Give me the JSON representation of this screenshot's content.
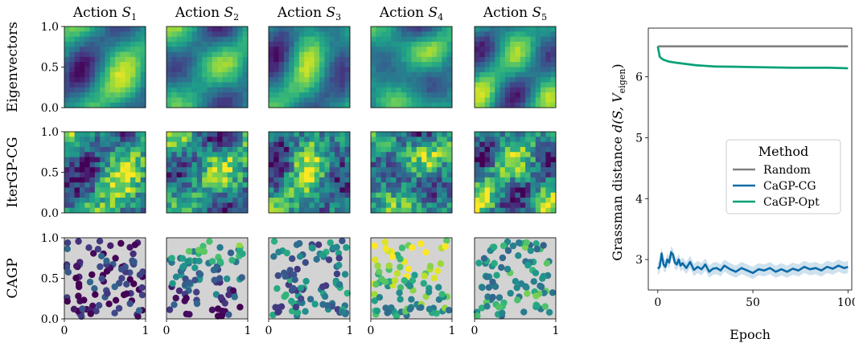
{
  "chart_data": [
    {
      "type": "heatmap",
      "columns": [
        {
          "label_text": "Action ",
          "label_sub": "S",
          "label_index": "1"
        },
        {
          "label_text": "Action ",
          "label_sub": "S",
          "label_index": "2"
        },
        {
          "label_text": "Action ",
          "label_sub": "S",
          "label_index": "3"
        },
        {
          "label_text": "Action ",
          "label_sub": "S",
          "label_index": "4"
        },
        {
          "label_text": "Action ",
          "label_sub": "S",
          "label_index": "5"
        }
      ],
      "rows": [
        "Eigenvectors",
        "IterGP-CG",
        "CAGP"
      ],
      "x_ticks": [
        "0",
        "1"
      ],
      "y_ticks": [
        "0.0",
        "0.5",
        "1.0"
      ],
      "xlim": [
        0,
        1
      ],
      "ylim": [
        0,
        1
      ],
      "colormap": "viridis",
      "cagp_background": "#d3d3d3"
    },
    {
      "type": "line",
      "xlabel": "Epoch",
      "ylabel_prefix": "Grassman distance ",
      "ylabel_formula": "d(S, V",
      "ylabel_sub": "eigen",
      "xlim": [
        -5,
        102
      ],
      "ylim": [
        2.5,
        6.8
      ],
      "x_ticks": [
        0,
        50,
        100
      ],
      "y_ticks": [
        3,
        4,
        5,
        6
      ],
      "legend_title": "Method",
      "legend_position": "center-right",
      "series": [
        {
          "name": "Random",
          "color": "#808080",
          "x": [
            0,
            100
          ],
          "values": [
            6.5,
            6.5
          ]
        },
        {
          "name": "CaGP-CG",
          "color": "#0a6aa8",
          "x": [
            0,
            1,
            2,
            3,
            4,
            5,
            6,
            7,
            8,
            9,
            10,
            11,
            12,
            13,
            15,
            17,
            19,
            21,
            23,
            25,
            27,
            29,
            31,
            33,
            35,
            38,
            41,
            44,
            47,
            50,
            53,
            56,
            59,
            62,
            65,
            68,
            71,
            74,
            77,
            80,
            83,
            86,
            89,
            92,
            95,
            98,
            100
          ],
          "values": [
            2.85,
            2.88,
            3.1,
            2.92,
            2.88,
            3.0,
            2.95,
            3.12,
            3.08,
            2.95,
            2.92,
            3.0,
            2.9,
            2.94,
            2.86,
            2.96,
            2.83,
            2.88,
            2.84,
            2.92,
            2.8,
            2.85,
            2.86,
            2.82,
            2.9,
            2.84,
            2.8,
            2.86,
            2.82,
            2.78,
            2.84,
            2.82,
            2.86,
            2.8,
            2.84,
            2.8,
            2.85,
            2.82,
            2.88,
            2.84,
            2.86,
            2.82,
            2.88,
            2.85,
            2.9,
            2.86,
            2.88
          ],
          "band": 0.1
        },
        {
          "name": "CaGP-Opt",
          "color": "#00a077",
          "x": [
            0,
            1,
            2,
            3,
            4,
            6,
            8,
            10,
            15,
            20,
            25,
            30,
            40,
            50,
            60,
            70,
            80,
            90,
            100
          ],
          "values": [
            6.5,
            6.33,
            6.3,
            6.28,
            6.27,
            6.25,
            6.24,
            6.23,
            6.21,
            6.19,
            6.18,
            6.17,
            6.165,
            6.16,
            6.155,
            6.15,
            6.15,
            6.15,
            6.14
          ],
          "band": 0.02
        }
      ]
    }
  ]
}
